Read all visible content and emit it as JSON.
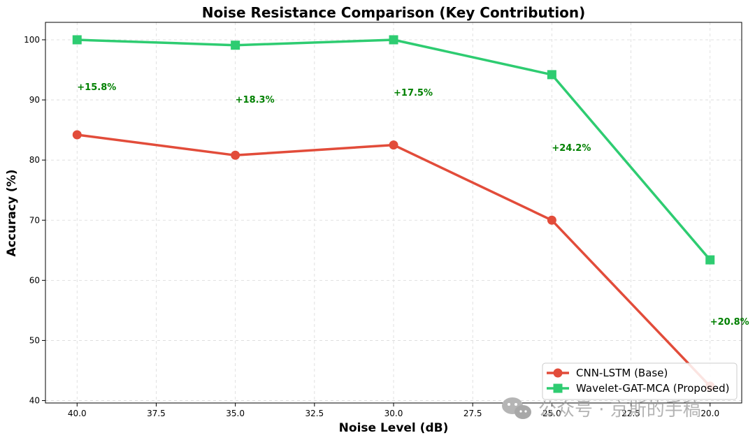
{
  "chart_data": {
    "type": "line",
    "title": "Noise Resistance Comparison (Key Contribution)",
    "xlabel": "Noise Level (dB)",
    "ylabel": "Accuracy (%)",
    "x": [
      40.0,
      35.0,
      30.0,
      25.0,
      20.0
    ],
    "xlim": [
      41.0,
      19.0
    ],
    "ylim": [
      39.6,
      102.9
    ],
    "x_ticks": [
      40.0,
      37.5,
      35.0,
      32.5,
      30.0,
      27.5,
      25.0,
      22.5,
      20.0
    ],
    "x_tick_labels": [
      "40.0",
      "37.5",
      "35.0",
      "32.5",
      "30.0",
      "27.5",
      "25.0",
      "22.5",
      "20.0"
    ],
    "y_ticks": [
      40,
      50,
      60,
      70,
      80,
      90,
      100
    ],
    "y_tick_labels": [
      "40",
      "50",
      "60",
      "70",
      "80",
      "90",
      "100"
    ],
    "grid": true,
    "legend_position": "bottom-right",
    "series": [
      {
        "name": "CNN-LSTM (Base)",
        "values": [
          84.2,
          80.8,
          82.5,
          70.0,
          42.4
        ],
        "color": "#e24c3a",
        "marker": "circle"
      },
      {
        "name": "Wavelet-GAT-MCA (Proposed)",
        "values": [
          100.0,
          99.1,
          100.0,
          94.2,
          63.4
        ],
        "color": "#2ecc71",
        "marker": "square"
      }
    ],
    "annotations": [
      {
        "text": "+15.8%",
        "x": 40.0,
        "y": 92.2
      },
      {
        "text": "+18.3%",
        "x": 35.0,
        "y": 90.1
      },
      {
        "text": "+17.5%",
        "x": 30.0,
        "y": 91.3
      },
      {
        "text": "+24.2%",
        "x": 25.0,
        "y": 82.1
      },
      {
        "text": "+20.8%",
        "x": 20.0,
        "y": 53.2
      }
    ],
    "annotation_color": "#008000"
  },
  "watermark": {
    "text": "公众号 · 京斯的手稿"
  }
}
